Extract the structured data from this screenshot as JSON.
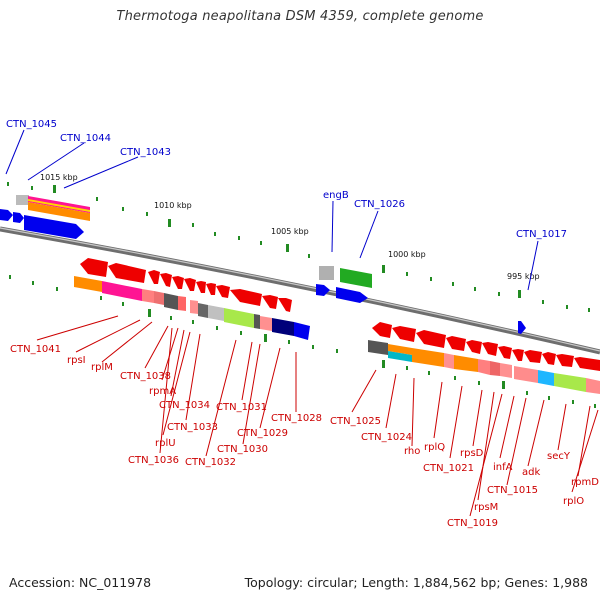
{
  "title": "Thermotoga neapolitana DSM 4359, complete genome",
  "footer": {
    "accession": "Accession: NC_011978",
    "info": "Topology: circular; Length: 1,884,562 bp; Genes: 1,988"
  },
  "colors": {
    "forward_gene": "#0000ee",
    "reverse_gene": "#ee0000",
    "forward_label": "#0000cc",
    "reverse_label": "#cc0000",
    "tick": "#228b22",
    "backbone": "#7a7a7a"
  },
  "scale_ticks": [
    "1015 kbp",
    "1010 kbp",
    "1005 kbp",
    "1000 kbp",
    "995 kbp"
  ],
  "forward_labels": [
    "CTN_1045",
    "CTN_1044",
    "CTN_1043",
    "engB",
    "CTN_1026",
    "CTN_1017"
  ],
  "reverse_labels": [
    "CTN_1041",
    "rpsI",
    "rplM",
    "CTN_1038",
    "rpmA",
    "CTN_1034",
    "CTN_1033",
    "rplU",
    "CTN_1036",
    "CTN_1032",
    "CTN_1031",
    "CTN_1030",
    "CTN_1029",
    "CTN_1028",
    "CTN_1025",
    "CTN_1024",
    "rho",
    "rplQ",
    "CTN_1021",
    "rpsD",
    "rpsM",
    "CTN_1019",
    "infA",
    "CTN_1015",
    "adk",
    "secY",
    "rpmD",
    "rplO"
  ]
}
